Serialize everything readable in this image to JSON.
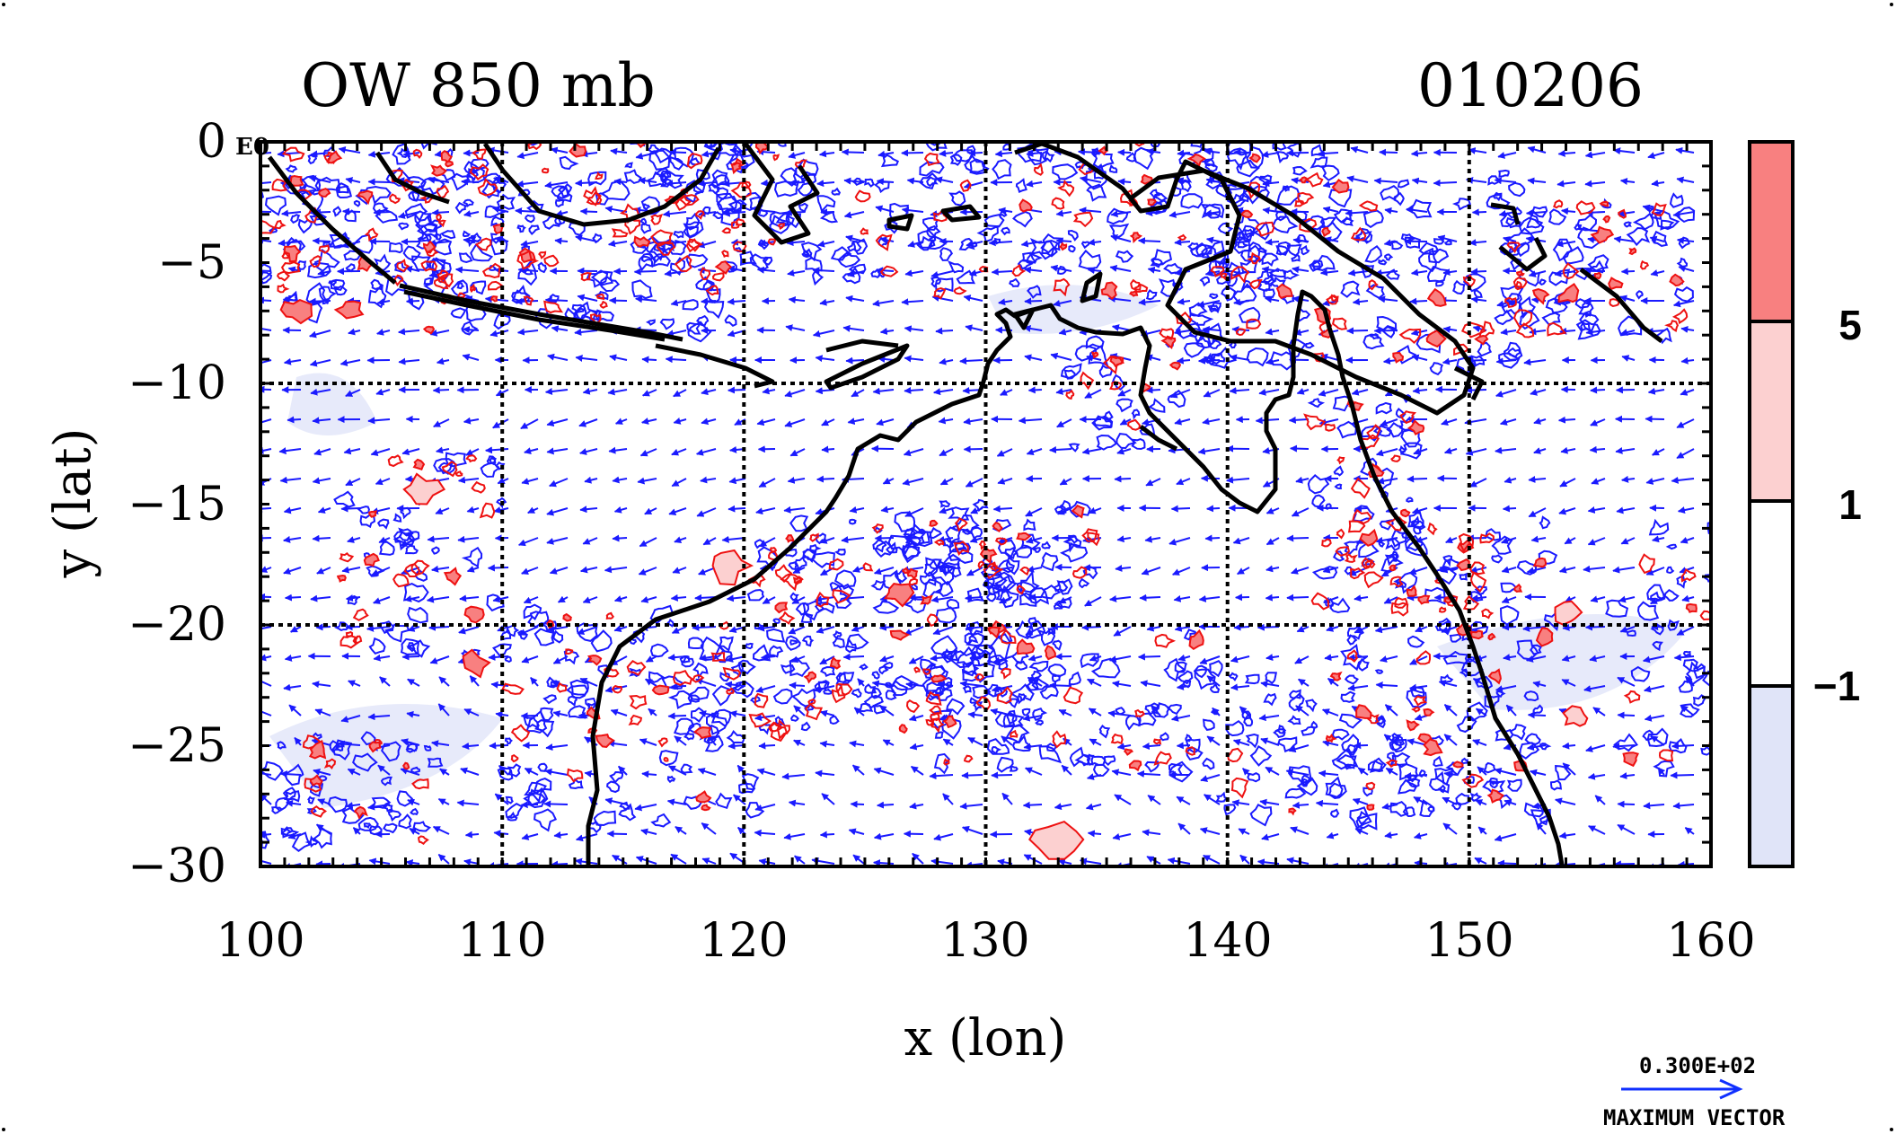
{
  "figure": {
    "title_left": "OW 850 mb",
    "title_right": "010206",
    "corner_label": "E0"
  },
  "map": {
    "lon_range": [
      100,
      160
    ],
    "lat_range": [
      -30,
      0
    ],
    "gridlines_lon": [
      110,
      120,
      130,
      140,
      150
    ],
    "gridlines_lat": [
      -10,
      -20
    ],
    "x_axis_label": "x (lon)",
    "y_axis_label": "y (lat)",
    "x_ticks": [
      "100",
      "110",
      "120",
      "130",
      "140",
      "150",
      "160"
    ],
    "y_ticks": [
      "0",
      "−5",
      "−10",
      "−15",
      "−20",
      "−25",
      "−30"
    ]
  },
  "colorbar": {
    "labels": [
      "5",
      "1",
      "−1"
    ],
    "bands": [
      {
        "color": "#f88080"
      },
      {
        "color": "#fcd0d0"
      },
      {
        "color": "#ffffff"
      },
      {
        "color": "#e0e4f8"
      }
    ]
  },
  "vector_key": {
    "magnitude_label": "0.300E+02",
    "caption": "MAXIMUM VECTOR",
    "color": "#1030ff"
  },
  "colors": {
    "coast": "#000000",
    "positive_contour": "#ee1111",
    "negative_contour": "#1a1aff",
    "wind_vector": "#1a1aff",
    "grid": "#000000"
  }
}
